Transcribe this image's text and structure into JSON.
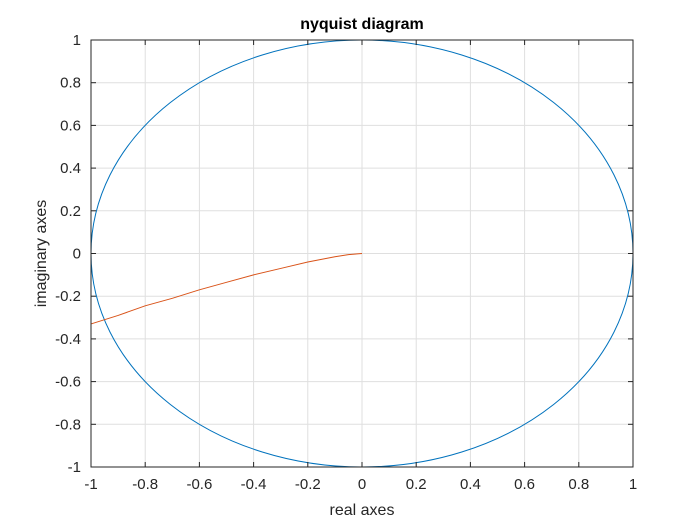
{
  "chart_data": {
    "type": "line",
    "title": "nyquist diagram",
    "xlabel": "real axes",
    "ylabel": "imaginary axes",
    "xlim": [
      -1,
      1
    ],
    "ylim": [
      -1,
      1
    ],
    "grid": true,
    "x_ticks": [
      -1,
      -0.8,
      -0.6,
      -0.4,
      -0.2,
      0,
      0.2,
      0.4,
      0.6,
      0.8,
      1
    ],
    "y_ticks": [
      -1,
      -0.8,
      -0.6,
      -0.4,
      -0.2,
      0,
      0.2,
      0.4,
      0.6,
      0.8,
      1
    ],
    "x_tick_labels": [
      "-1",
      "-0.8",
      "-0.6",
      "-0.4",
      "-0.2",
      "0",
      "0.2",
      "0.4",
      "0.6",
      "0.8",
      "1"
    ],
    "y_tick_labels": [
      "-1",
      "-0.8",
      "-0.6",
      "-0.4",
      "-0.2",
      "0",
      "0.2",
      "0.4",
      "0.6",
      "0.8",
      "1"
    ],
    "series": [
      {
        "color": "#0072BD",
        "description_shape": "unit circle",
        "center": [
          0,
          0
        ],
        "radius": 1
      },
      {
        "color": "#D95319",
        "x": [
          0.0,
          -0.05,
          -0.1,
          -0.2,
          -0.3,
          -0.4,
          -0.5,
          -0.6,
          -0.7,
          -0.8,
          -0.9,
          -1.0
        ],
        "y": [
          0.0,
          -0.005,
          -0.015,
          -0.04,
          -0.07,
          -0.1,
          -0.135,
          -0.17,
          -0.21,
          -0.245,
          -0.29,
          -0.33
        ]
      }
    ]
  }
}
